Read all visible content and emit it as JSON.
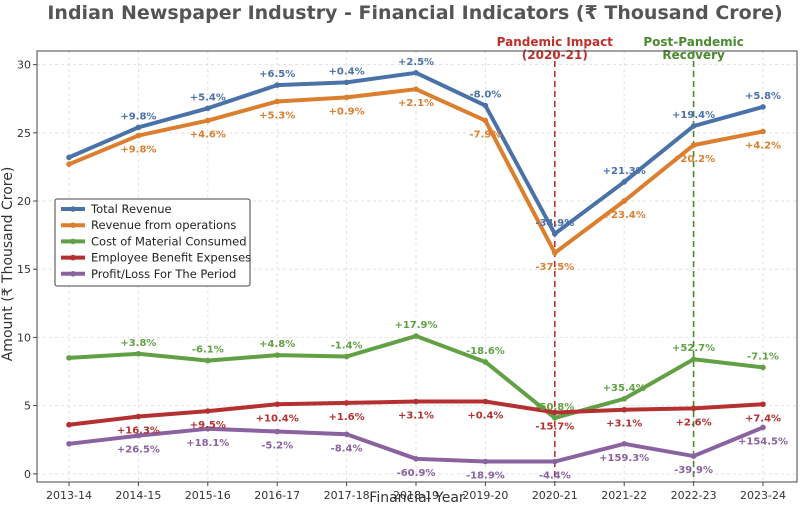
{
  "chart_data": {
    "type": "line",
    "title": "Indian Newspaper Industry - Financial Indicators (₹ Thousand Crore)",
    "xlabel": "Financial Year",
    "ylabel": "Amount (₹ Thousand Crore)",
    "ylim": [
      -0.6,
      31
    ],
    "yticks": [
      0,
      5,
      10,
      15,
      20,
      25,
      30
    ],
    "grid": true,
    "legend_position": "center-left",
    "categories": [
      "2013-14",
      "2014-15",
      "2015-16",
      "2016-17",
      "2017-18",
      "2018-19",
      "2019-20",
      "2020-21",
      "2021-22",
      "2022-23",
      "2023-24"
    ],
    "series": [
      {
        "name": "Total Revenue",
        "color": "#4a72a8",
        "values": [
          23.2,
          25.4,
          26.8,
          28.5,
          28.7,
          29.4,
          27.0,
          17.6,
          21.4,
          25.5,
          26.9
        ],
        "labels": [
          "",
          "+9.8%",
          "+5.4%",
          "+6.5%",
          "+0.4%",
          "+2.5%",
          "-8.0%",
          "-34.9%",
          "+21.3%",
          "+19.4%",
          "+5.8%"
        ]
      },
      {
        "name": "Revenue from operations",
        "color": "#db7f2e",
        "values": [
          22.7,
          24.8,
          25.9,
          27.3,
          27.6,
          28.2,
          25.9,
          16.2,
          20.0,
          24.1,
          25.1
        ],
        "labels": [
          "",
          "+9.8%",
          "+4.6%",
          "+5.3%",
          "+0.9%",
          "+2.1%",
          "-7.9%",
          "-37.5%",
          "+23.4%",
          "+20.2%",
          "+4.2%"
        ]
      },
      {
        "name": "Cost of Material Consumed",
        "color": "#62a046",
        "values": [
          8.5,
          8.8,
          8.3,
          8.7,
          8.6,
          10.1,
          8.2,
          4.1,
          5.5,
          8.4,
          7.8
        ],
        "labels": [
          "",
          "+3.8%",
          "-6.1%",
          "+4.8%",
          "-1.4%",
          "+17.9%",
          "-18.6%",
          "-50.8%",
          "+35.4%",
          "+52.7%",
          "-7.1%"
        ]
      },
      {
        "name": "Employee Benefit Expenses",
        "color": "#b53030",
        "values": [
          3.6,
          4.2,
          4.6,
          5.1,
          5.2,
          5.3,
          5.3,
          4.5,
          4.7,
          4.8,
          5.1
        ],
        "labels": [
          "",
          "+16.3%",
          "+9.5%",
          "+10.4%",
          "+1.6%",
          "+3.1%",
          "+0.4%",
          "-15.7%",
          "+3.1%",
          "+2.6%",
          "+7.4%"
        ]
      },
      {
        "name": "Profit/Loss For The Period",
        "color": "#8a62a0",
        "values": [
          2.2,
          2.8,
          3.3,
          3.1,
          2.9,
          1.1,
          0.9,
          0.9,
          2.2,
          1.3,
          3.4
        ],
        "labels": [
          "",
          "+26.5%",
          "+18.1%",
          "-5.2%",
          "-8.4%",
          "-60.9%",
          "-18.9%",
          "-4.4%",
          "+159.3%",
          "-39.9%",
          "+154.5%"
        ]
      }
    ],
    "annotations": [
      {
        "category": "2020-21",
        "lines": [
          "Pandemic Impact",
          "(2020-21)"
        ],
        "color": "#c0302a"
      },
      {
        "category": "2022-23",
        "lines": [
          "Post-Pandemic",
          "Recovery"
        ],
        "color": "#4a8a30"
      }
    ]
  }
}
